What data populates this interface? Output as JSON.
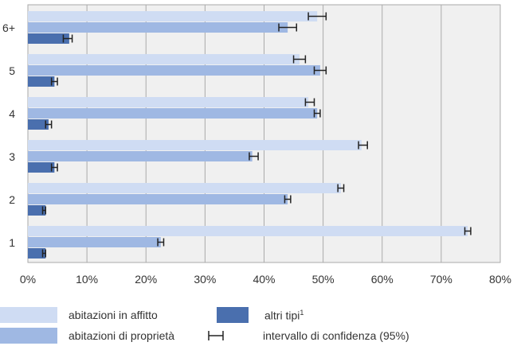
{
  "chart_data": {
    "type": "bar",
    "orientation": "horizontal",
    "categories": [
      "6+",
      "5",
      "4",
      "3",
      "2",
      "1"
    ],
    "series": [
      {
        "name": "abitazioni in affitto",
        "color": "#cfdcf3",
        "values": [
          49,
          46,
          47.5,
          56.5,
          53,
          74.5
        ],
        "ci": [
          [
            47.5,
            50.5
          ],
          [
            45,
            47
          ],
          [
            47,
            48.5
          ],
          [
            56,
            57.5
          ],
          [
            52.5,
            53.5
          ],
          [
            74,
            75
          ]
        ]
      },
      {
        "name": "abitazioni di proprietà",
        "color": "#9fb8e3",
        "values": [
          44,
          49.5,
          49,
          38,
          44,
          22.5
        ],
        "ci": [
          [
            42.5,
            45.5
          ],
          [
            48.5,
            50.5
          ],
          [
            48.5,
            49.5
          ],
          [
            37.5,
            39
          ],
          [
            43.5,
            44.5
          ],
          [
            22,
            23
          ]
        ]
      },
      {
        "name": "altri tipi",
        "color": "#4a6fae",
        "values": [
          7,
          4.5,
          3.5,
          4.5,
          3,
          3
        ],
        "ci": [
          [
            6,
            7.5
          ],
          [
            4,
            5
          ],
          [
            3,
            4
          ],
          [
            4,
            5
          ],
          [
            2.5,
            3
          ],
          [
            2.5,
            3
          ]
        ]
      }
    ],
    "xlim": [
      0,
      80
    ],
    "xticks": [
      "0%",
      "10%",
      "20%",
      "30%",
      "40%",
      "50%",
      "60%",
      "70%",
      "80%"
    ],
    "grid": true,
    "legend_position": "bottom"
  },
  "legend": {
    "rent": "abitazioni in affitto",
    "own": "abitazioni di proprietà",
    "other": "altri tipi",
    "other_sup": "1",
    "ci": "intervallo di confidenza (95%)"
  },
  "colors": {
    "background": "#f0f0f0",
    "grid": "#aaaaaa",
    "rent": "#cfdcf3",
    "own": "#9fb8e3",
    "other": "#4a6fae",
    "errorbar": "#222222"
  }
}
